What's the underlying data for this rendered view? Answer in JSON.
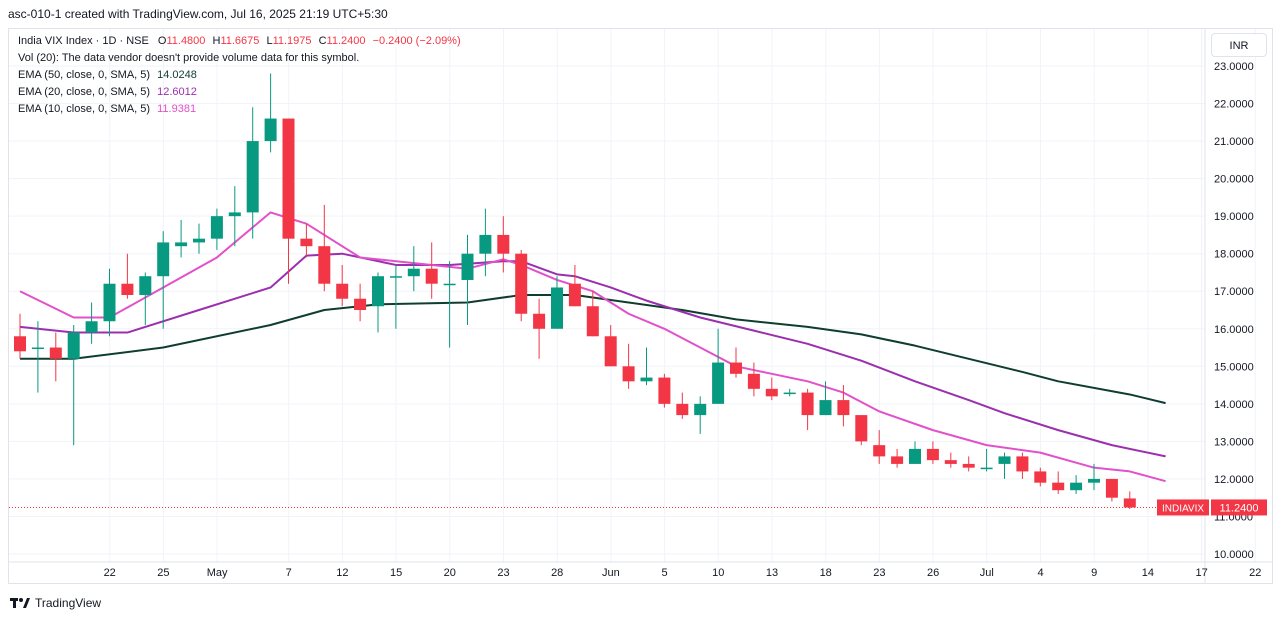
{
  "header": {
    "caption": "asc-010-1 created with TradingView.com, Jul 16, 2025 21:19 UTC+5:30"
  },
  "legend": {
    "symbol": "India VIX Index · 1D · NSE",
    "o_label": "O",
    "o_value": "11.4800",
    "h_label": "H",
    "h_value": "11.6675",
    "l_label": "L",
    "l_value": "11.1975",
    "c_label": "C",
    "c_value": "11.2400",
    "change": "−0.2400 (−2.09%)",
    "vol": "Vol (20): The data vendor doesn't provide volume data for this symbol.",
    "ema50_label": "EMA (50, close, 0, SMA, 5)",
    "ema50_value": "14.0248",
    "ema20_label": "EMA (20, close, 0, SMA, 5)",
    "ema20_value": "12.6012",
    "ema10_label": "EMA (10, close, 0, SMA, 5)",
    "ema10_value": "11.9381"
  },
  "currency": "INR",
  "price_tag": {
    "symbol": "INDIAVIX",
    "value": "11.2400"
  },
  "footer": {
    "brand": "TradingView"
  },
  "colors": {
    "up": "#089981",
    "down": "#f23645",
    "ema50": "#0f3d30",
    "ema20": "#9b2fae",
    "ema10": "#e251c9",
    "grid": "#f0f3fa",
    "text": "#131722"
  },
  "chart_data": {
    "type": "candlestick",
    "y_ticks": [
      "10.0000",
      "11.0000",
      "12.0000",
      "13.0000",
      "14.0000",
      "15.0000",
      "16.0000",
      "17.0000",
      "18.0000",
      "19.0000",
      "20.0000",
      "21.0000",
      "22.0000",
      "23.0000"
    ],
    "ylim": [
      10,
      23
    ],
    "x_ticks": [
      "22",
      "25",
      "May",
      "7",
      "12",
      "15",
      "20",
      "23",
      "28",
      "Jun",
      "5",
      "10",
      "13",
      "18",
      "23",
      "26",
      "Jul",
      "4",
      "9",
      "14",
      "17",
      "22"
    ],
    "x_tick_index": [
      3,
      6,
      9,
      13,
      16,
      19,
      22,
      25,
      28,
      31,
      34,
      37,
      40,
      43,
      46,
      49,
      52,
      55,
      58,
      61,
      64,
      67
    ],
    "candles": [
      {
        "o": 15.8,
        "h": 16.4,
        "l": 15.2,
        "c": 15.4
      },
      {
        "o": 15.5,
        "h": 16.2,
        "l": 14.3,
        "c": 15.5
      },
      {
        "o": 15.5,
        "h": 15.9,
        "l": 14.6,
        "c": 15.2
      },
      {
        "o": 15.2,
        "h": 16.1,
        "l": 12.9,
        "c": 15.9
      },
      {
        "o": 15.9,
        "h": 16.7,
        "l": 15.6,
        "c": 16.2
      },
      {
        "o": 16.2,
        "h": 17.6,
        "l": 15.8,
        "c": 17.2
      },
      {
        "o": 17.2,
        "h": 18.0,
        "l": 16.8,
        "c": 16.9
      },
      {
        "o": 16.9,
        "h": 17.5,
        "l": 16.1,
        "c": 17.4
      },
      {
        "o": 17.4,
        "h": 18.6,
        "l": 16.0,
        "c": 18.3
      },
      {
        "o": 18.2,
        "h": 18.9,
        "l": 17.9,
        "c": 18.3
      },
      {
        "o": 18.3,
        "h": 18.8,
        "l": 18.0,
        "c": 18.4
      },
      {
        "o": 18.4,
        "h": 19.2,
        "l": 18.1,
        "c": 19.0
      },
      {
        "o": 19.0,
        "h": 19.8,
        "l": 18.2,
        "c": 19.1
      },
      {
        "o": 19.1,
        "h": 21.9,
        "l": 18.4,
        "c": 21.0
      },
      {
        "o": 21.0,
        "h": 22.8,
        "l": 20.7,
        "c": 21.6
      },
      {
        "o": 21.6,
        "h": 21.6,
        "l": 17.2,
        "c": 18.4
      },
      {
        "o": 18.4,
        "h": 18.8,
        "l": 17.9,
        "c": 18.2
      },
      {
        "o": 18.2,
        "h": 19.3,
        "l": 17.0,
        "c": 17.2
      },
      {
        "o": 17.2,
        "h": 17.7,
        "l": 16.6,
        "c": 16.8
      },
      {
        "o": 16.8,
        "h": 17.2,
        "l": 16.2,
        "c": 16.5
      },
      {
        "o": 16.6,
        "h": 17.5,
        "l": 15.9,
        "c": 17.4
      },
      {
        "o": 17.4,
        "h": 17.7,
        "l": 16.0,
        "c": 17.4
      },
      {
        "o": 17.4,
        "h": 18.2,
        "l": 17.0,
        "c": 17.6
      },
      {
        "o": 17.6,
        "h": 18.3,
        "l": 16.8,
        "c": 17.2
      },
      {
        "o": 17.2,
        "h": 17.8,
        "l": 15.5,
        "c": 17.2
      },
      {
        "o": 17.3,
        "h": 18.5,
        "l": 16.1,
        "c": 18.0
      },
      {
        "o": 18.0,
        "h": 19.2,
        "l": 17.4,
        "c": 18.5
      },
      {
        "o": 18.5,
        "h": 19.0,
        "l": 17.5,
        "c": 18.0
      },
      {
        "o": 18.0,
        "h": 18.1,
        "l": 16.2,
        "c": 16.4
      },
      {
        "o": 16.4,
        "h": 16.8,
        "l": 15.2,
        "c": 16.0
      },
      {
        "o": 16.0,
        "h": 17.4,
        "l": 16.0,
        "c": 17.1
      },
      {
        "o": 17.2,
        "h": 17.7,
        "l": 16.6,
        "c": 16.6
      },
      {
        "o": 16.6,
        "h": 17.0,
        "l": 15.8,
        "c": 15.8
      },
      {
        "o": 15.8,
        "h": 16.1,
        "l": 15.0,
        "c": 15.0
      },
      {
        "o": 15.0,
        "h": 15.6,
        "l": 14.4,
        "c": 14.6
      },
      {
        "o": 14.6,
        "h": 15.5,
        "l": 14.5,
        "c": 14.7
      },
      {
        "o": 14.7,
        "h": 14.8,
        "l": 13.9,
        "c": 14.0
      },
      {
        "o": 14.0,
        "h": 14.3,
        "l": 13.6,
        "c": 13.7
      },
      {
        "o": 13.7,
        "h": 14.2,
        "l": 13.2,
        "c": 14.0
      },
      {
        "o": 14.0,
        "h": 16.0,
        "l": 14.0,
        "c": 15.1
      },
      {
        "o": 15.1,
        "h": 15.5,
        "l": 14.7,
        "c": 14.8
      },
      {
        "o": 14.8,
        "h": 15.1,
        "l": 14.2,
        "c": 14.4
      },
      {
        "o": 14.4,
        "h": 14.7,
        "l": 14.1,
        "c": 14.2
      },
      {
        "o": 14.3,
        "h": 14.4,
        "l": 14.2,
        "c": 14.3
      },
      {
        "o": 14.3,
        "h": 14.4,
        "l": 13.3,
        "c": 13.7
      },
      {
        "o": 13.7,
        "h": 14.6,
        "l": 13.7,
        "c": 14.1
      },
      {
        "o": 14.1,
        "h": 14.5,
        "l": 13.4,
        "c": 13.7
      },
      {
        "o": 13.7,
        "h": 13.7,
        "l": 12.9,
        "c": 13.0
      },
      {
        "o": 12.9,
        "h": 13.3,
        "l": 12.4,
        "c": 12.6
      },
      {
        "o": 12.6,
        "h": 12.8,
        "l": 12.3,
        "c": 12.4
      },
      {
        "o": 12.4,
        "h": 13.0,
        "l": 12.4,
        "c": 12.8
      },
      {
        "o": 12.8,
        "h": 13.0,
        "l": 12.4,
        "c": 12.5
      },
      {
        "o": 12.5,
        "h": 12.7,
        "l": 12.3,
        "c": 12.4
      },
      {
        "o": 12.4,
        "h": 12.6,
        "l": 12.2,
        "c": 12.3
      },
      {
        "o": 12.3,
        "h": 12.8,
        "l": 12.2,
        "c": 12.3
      },
      {
        "o": 12.4,
        "h": 12.7,
        "l": 12.0,
        "c": 12.6
      },
      {
        "o": 12.6,
        "h": 12.7,
        "l": 12.0,
        "c": 12.2
      },
      {
        "o": 12.2,
        "h": 12.3,
        "l": 11.8,
        "c": 11.9
      },
      {
        "o": 11.9,
        "h": 12.2,
        "l": 11.6,
        "c": 11.7
      },
      {
        "o": 11.7,
        "h": 12.1,
        "l": 11.6,
        "c": 11.9
      },
      {
        "o": 11.9,
        "h": 12.4,
        "l": 11.7,
        "c": 12.0
      },
      {
        "o": 12.0,
        "h": 12.0,
        "l": 11.4,
        "c": 11.5
      },
      {
        "o": 11.48,
        "h": 11.6675,
        "l": 11.1975,
        "c": 11.24
      }
    ],
    "series": [
      {
        "name": "EMA (50, close, 0, SMA, 5)",
        "color": "#0f3d30",
        "points": [
          [
            0,
            15.2
          ],
          [
            3,
            15.2
          ],
          [
            8,
            15.5
          ],
          [
            14,
            16.1
          ],
          [
            17,
            16.5
          ],
          [
            20,
            16.65
          ],
          [
            25,
            16.7
          ],
          [
            28,
            16.9
          ],
          [
            31,
            16.9
          ],
          [
            34,
            16.7
          ],
          [
            37,
            16.5
          ],
          [
            40,
            16.25
          ],
          [
            44,
            16.05
          ],
          [
            47,
            15.85
          ],
          [
            50,
            15.55
          ],
          [
            53,
            15.2
          ],
          [
            56,
            14.85
          ],
          [
            58,
            14.6
          ],
          [
            62,
            14.25
          ],
          [
            64,
            14.02
          ]
        ]
      },
      {
        "name": "EMA (20, close, 0, SMA, 5)",
        "color": "#9b2fae",
        "points": [
          [
            0,
            16.05
          ],
          [
            3,
            15.9
          ],
          [
            6,
            15.9
          ],
          [
            10,
            16.5
          ],
          [
            14,
            17.1
          ],
          [
            16,
            17.95
          ],
          [
            18,
            18.0
          ],
          [
            21,
            17.7
          ],
          [
            24,
            17.7
          ],
          [
            27,
            17.8
          ],
          [
            28,
            17.8
          ],
          [
            30,
            17.45
          ],
          [
            31,
            17.4
          ],
          [
            33,
            17.1
          ],
          [
            35,
            16.75
          ],
          [
            38,
            16.3
          ],
          [
            41,
            15.95
          ],
          [
            44,
            15.6
          ],
          [
            47,
            15.15
          ],
          [
            50,
            14.6
          ],
          [
            53,
            14.1
          ],
          [
            55,
            13.75
          ],
          [
            58,
            13.3
          ],
          [
            61,
            12.9
          ],
          [
            64,
            12.6
          ]
        ]
      },
      {
        "name": "EMA (10, close, 0, SMA, 5)",
        "color": "#e251c9",
        "points": [
          [
            0,
            17.0
          ],
          [
            3,
            16.3
          ],
          [
            5,
            16.3
          ],
          [
            8,
            17.1
          ],
          [
            11,
            17.9
          ],
          [
            14,
            19.1
          ],
          [
            16,
            18.8
          ],
          [
            19,
            17.9
          ],
          [
            22,
            17.75
          ],
          [
            25,
            17.6
          ],
          [
            27,
            17.85
          ],
          [
            28,
            17.7
          ],
          [
            30,
            17.3
          ],
          [
            32,
            17.0
          ],
          [
            34,
            16.4
          ],
          [
            36,
            16.0
          ],
          [
            38,
            15.5
          ],
          [
            40,
            15.0
          ],
          [
            42,
            14.8
          ],
          [
            44,
            14.6
          ],
          [
            46,
            14.3
          ],
          [
            48,
            13.8
          ],
          [
            51,
            13.3
          ],
          [
            54,
            12.9
          ],
          [
            57,
            12.7
          ],
          [
            60,
            12.3
          ],
          [
            62,
            12.2
          ],
          [
            64,
            11.94
          ]
        ]
      }
    ]
  }
}
